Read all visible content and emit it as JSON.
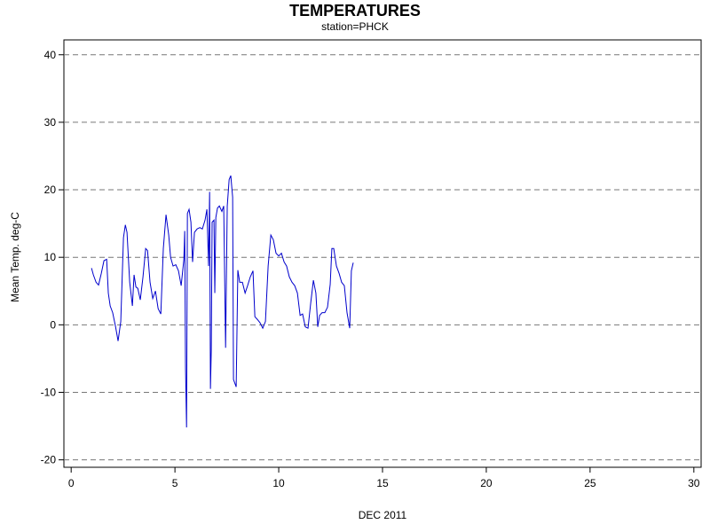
{
  "chart_data": {
    "type": "line",
    "title": "TEMPERATURES",
    "subtitle": "station=PHCK",
    "x_label": "DEC 2011",
    "y_label": "Mean Temp. deg-C",
    "xlim": [
      -0.35,
      30.35
    ],
    "ylim": [
      -21.1,
      42.2
    ],
    "xticks": [
      0,
      5,
      10,
      15,
      20,
      25,
      30
    ],
    "yticks": [
      -20,
      -10,
      0,
      10,
      20,
      30,
      40
    ],
    "grid": true,
    "series": [
      {
        "name": "PHCK",
        "color": "#0000cc",
        "x": [
          0.98,
          1.07,
          1.2,
          1.32,
          1.45,
          1.58,
          1.71,
          1.79,
          1.88,
          2.0,
          2.14,
          2.26,
          2.39,
          2.52,
          2.61,
          2.69,
          2.82,
          2.95,
          3.03,
          3.12,
          3.21,
          3.33,
          3.46,
          3.59,
          3.68,
          3.8,
          3.93,
          4.06,
          4.19,
          4.32,
          4.44,
          4.57,
          4.7,
          4.79,
          4.91,
          5.04,
          5.17,
          5.3,
          5.43,
          5.47,
          5.51,
          5.56,
          5.6,
          5.68,
          5.77,
          5.85,
          5.94,
          6.07,
          6.2,
          6.32,
          6.45,
          6.54,
          6.62,
          6.67,
          6.71,
          6.75,
          6.79,
          6.88,
          6.92,
          6.97,
          7.05,
          7.14,
          7.26,
          7.35,
          7.44,
          7.52,
          7.61,
          7.69,
          7.78,
          7.82,
          7.95,
          8.03,
          8.12,
          8.25,
          8.38,
          8.5,
          8.63,
          8.76,
          8.85,
          8.97,
          9.1,
          9.23,
          9.36,
          9.49,
          9.62,
          9.74,
          9.87,
          10.0,
          10.13,
          10.26,
          10.38,
          10.51,
          10.64,
          10.77,
          10.9,
          11.03,
          11.15,
          11.28,
          11.41,
          11.54,
          11.67,
          11.79,
          11.88,
          11.97,
          12.09,
          12.22,
          12.35,
          12.48,
          12.56,
          12.65,
          12.78,
          12.91,
          13.03,
          13.16,
          13.29,
          13.42,
          13.5,
          13.59
        ],
        "values": [
          8.4,
          7.4,
          6.3,
          5.9,
          7.6,
          9.5,
          9.7,
          4.7,
          2.8,
          1.8,
          -0.3,
          -2.4,
          0.5,
          12.9,
          14.8,
          13.7,
          6.3,
          2.8,
          7.4,
          5.6,
          5.4,
          3.7,
          7.1,
          11.3,
          11.0,
          6.3,
          3.9,
          5.0,
          2.4,
          1.6,
          11.3,
          16.3,
          13.3,
          10.0,
          8.7,
          8.9,
          8.0,
          5.8,
          9.7,
          13.9,
          -6.4,
          -15.2,
          16.5,
          17.1,
          15.2,
          9.3,
          13.7,
          14.2,
          14.4,
          14.2,
          15.5,
          17.1,
          8.7,
          19.7,
          -9.5,
          -3.8,
          15.2,
          15.5,
          4.7,
          15.9,
          17.3,
          17.6,
          16.8,
          17.6,
          -3.4,
          17.6,
          21.5,
          22.1,
          18.9,
          -8.1,
          -9.2,
          8.1,
          6.3,
          6.3,
          4.7,
          5.8,
          7.1,
          8.0,
          1.2,
          0.8,
          0.3,
          -0.5,
          0.5,
          8.7,
          13.3,
          12.6,
          10.6,
          10.2,
          10.6,
          9.3,
          8.7,
          7.1,
          6.3,
          5.8,
          4.7,
          1.4,
          1.6,
          -0.3,
          -0.5,
          3.2,
          6.6,
          4.7,
          -0.3,
          1.4,
          1.8,
          1.8,
          2.6,
          6.0,
          11.3,
          11.3,
          8.7,
          7.6,
          6.3,
          5.8,
          1.8,
          -0.5,
          8.0,
          9.2
        ]
      }
    ]
  }
}
